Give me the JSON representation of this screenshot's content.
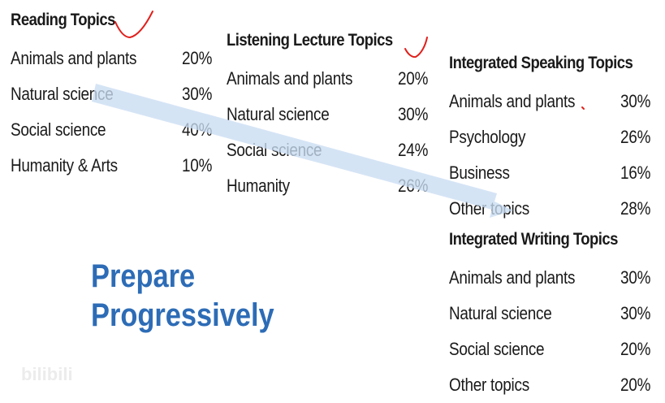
{
  "reading": {
    "title": "Reading Topics",
    "rows": [
      {
        "label": "Animals and plants",
        "value": "20%"
      },
      {
        "label": "Natural science",
        "value": "30%"
      },
      {
        "label": "Social science",
        "value": "40%"
      },
      {
        "label": "Humanity & Arts",
        "value": "10%"
      }
    ]
  },
  "listening": {
    "title": "Listening Lecture Topics",
    "rows": [
      {
        "label": "Animals and plants",
        "value": "20%"
      },
      {
        "label": "Natural science",
        "value": "30%"
      },
      {
        "label": "Social science",
        "value": "24%"
      },
      {
        "label": "Humanity",
        "value": "26%"
      }
    ]
  },
  "speaking": {
    "title": "Integrated Speaking Topics",
    "rows": [
      {
        "label": "Animals and plants",
        "value": "30%"
      },
      {
        "label": "Psychology",
        "value": "26%"
      },
      {
        "label": "Business",
        "value": "16%"
      },
      {
        "label": "Other topics",
        "value": "28%"
      }
    ]
  },
  "writing": {
    "title": "Integrated Writing Topics",
    "rows": [
      {
        "label": "Animals and plants",
        "value": "30%"
      },
      {
        "label": "Natural science",
        "value": "30%"
      },
      {
        "label": "Social science",
        "value": "20%"
      },
      {
        "label": "Other topics",
        "value": "20%"
      }
    ]
  },
  "slogan": {
    "line1": "Prepare",
    "line2": "Progressively"
  },
  "watermark": {
    "logo": "bilibili"
  },
  "colors": {
    "arrow": "#c9dcf2",
    "slogan": "#2d6cb6",
    "annotation": "#e0201c"
  },
  "icons": {
    "progress_arrow": "progress-arrow-icon",
    "checkmark": "checkmark-icon"
  }
}
